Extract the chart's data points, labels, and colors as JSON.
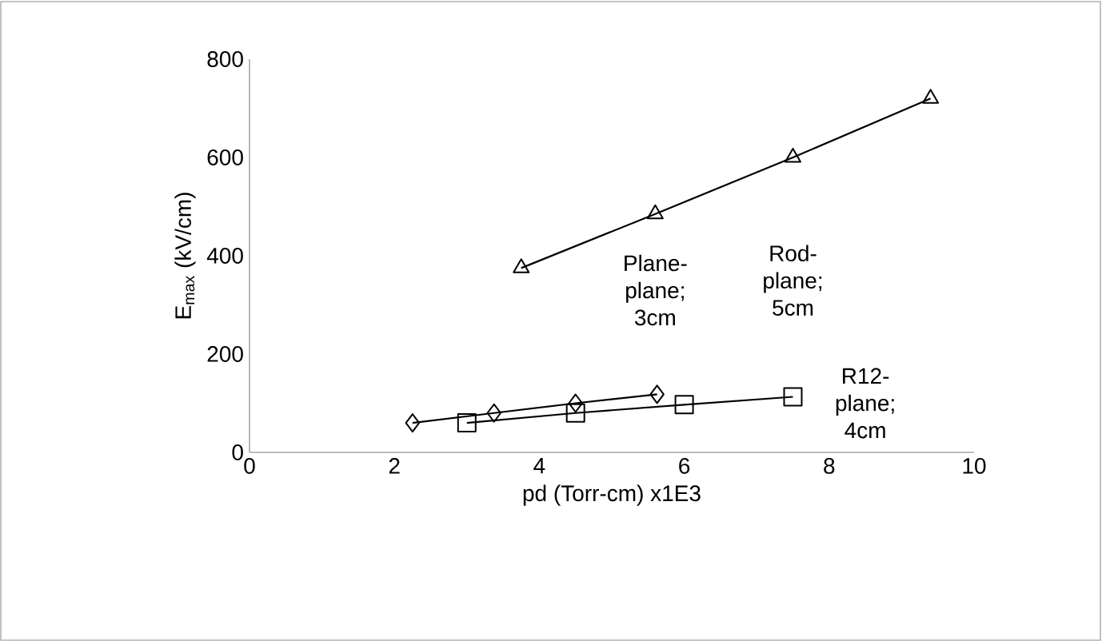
{
  "chart_data": {
    "type": "line",
    "xlabel": "pd (Torr-cm) x1E3",
    "ylabel": "E$_{max}$ (kV/cm)",
    "xlim": [
      0,
      10
    ],
    "xticks": [
      0,
      2,
      4,
      6,
      8,
      10
    ],
    "ylim": [
      0,
      800
    ],
    "yticks": [
      0,
      200,
      400,
      600,
      800
    ],
    "line_style": "solid",
    "series": [
      {
        "color": "#000000",
        "marker": "diamond",
        "x": [
          2.25,
          3.375,
          4.5,
          5.625
        ],
        "values": [
          60,
          80,
          100,
          118
        ]
      },
      {
        "color": "#000000",
        "marker": "square",
        "x": [
          3,
          4.5,
          6,
          7.5
        ],
        "values": [
          60,
          80,
          97,
          113
        ]
      },
      {
        "color": "#000000",
        "marker": "triangle",
        "x": [
          3.75,
          5.6,
          7.5,
          9.4
        ],
        "values": [
          375,
          485,
          600,
          720
        ]
      }
    ],
    "annotations": [
      "Plane-plane; 3cm",
      "Rod-plane; 5cm",
      "R12-plane; 4cm"
    ]
  }
}
